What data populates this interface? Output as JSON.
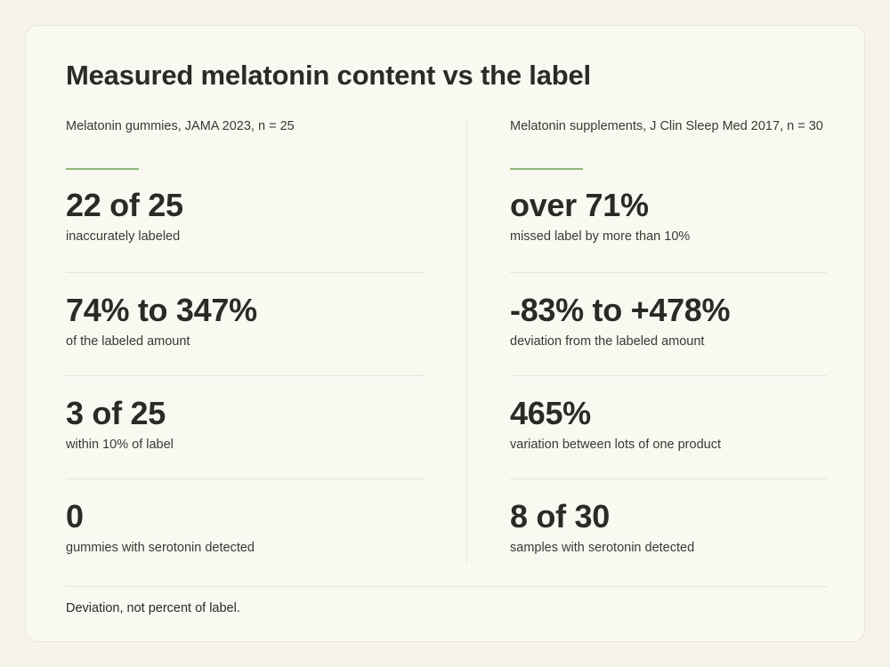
{
  "title": "Measured melatonin content vs the label",
  "left": {
    "heading": "Melatonin gummies, JAMA 2023, n = 25",
    "stats": [
      {
        "value": "22 of 25",
        "caption": "inaccurately labeled"
      },
      {
        "value": "74% to 347%",
        "caption": "of the labeled amount"
      },
      {
        "value": "3 of 25",
        "caption": "within 10% of label"
      },
      {
        "value": "0",
        "caption": "gummies with serotonin detected"
      }
    ]
  },
  "right": {
    "heading": "Melatonin supplements, J Clin Sleep Med 2017, n = 30",
    "stats": [
      {
        "value": "over 71%",
        "caption": "missed label by more than 10%"
      },
      {
        "value": "-83% to +478%",
        "caption": "deviation from the labeled amount"
      },
      {
        "value": "465%",
        "caption": "variation between lots of one product"
      },
      {
        "value": "8 of 30",
        "caption": "samples with serotonin detected"
      }
    ]
  },
  "footnote": "Deviation, not percent of label.",
  "colors": {
    "background": "#f5f3ea",
    "card": "#f9f8f1",
    "text": "#2b2b25",
    "accent": "#8fb878",
    "divider": "#e6e3d7"
  }
}
